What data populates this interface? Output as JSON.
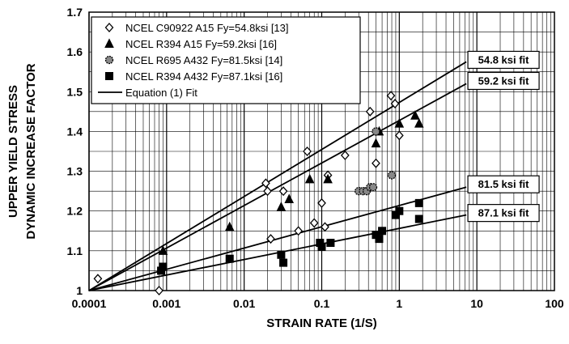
{
  "chart_data": {
    "type": "scatter",
    "title": "",
    "xlabel": "STRAIN RATE (1/S)",
    "ylabel_lines": [
      "UPPER YIELD STRESS",
      "DYNAMIC INCREASE FACTOR"
    ],
    "x_scale": "log",
    "xlim": [
      0.0001,
      100
    ],
    "ylim": [
      1.0,
      1.7
    ],
    "x_tick_labels": [
      "0.0001",
      "0.001",
      "0.01",
      "0.1",
      "1",
      "10",
      "100"
    ],
    "y_tick_labels": [
      "1",
      "1.1",
      "1.2",
      "1.3",
      "1.4",
      "1.5",
      "1.6",
      "1.7"
    ],
    "grid": true,
    "legend_position": "top-left",
    "series": [
      {
        "name": "NCEL C90922 A15 Fy=54.8ksi [13]",
        "marker": "diamond",
        "points": [
          [
            0.00013,
            1.03
          ],
          [
            0.0008,
            1.0
          ],
          [
            0.019,
            1.27
          ],
          [
            0.02,
            1.25
          ],
          [
            0.022,
            1.13
          ],
          [
            0.032,
            1.25
          ],
          [
            0.05,
            1.15
          ],
          [
            0.065,
            1.35
          ],
          [
            0.08,
            1.17
          ],
          [
            0.1,
            1.22
          ],
          [
            0.11,
            1.16
          ],
          [
            0.12,
            1.29
          ],
          [
            0.2,
            1.34
          ],
          [
            0.42,
            1.45
          ],
          [
            0.5,
            1.32
          ],
          [
            0.78,
            1.49
          ],
          [
            0.88,
            1.47
          ],
          [
            1.0,
            1.39
          ]
        ]
      },
      {
        "name": "NCEL R394 A15  Fy=59.2ksi [16]",
        "marker": "triangle",
        "points": [
          [
            0.0009,
            1.1
          ],
          [
            0.0065,
            1.16
          ],
          [
            0.03,
            1.21
          ],
          [
            0.038,
            1.23
          ],
          [
            0.07,
            1.28
          ],
          [
            0.12,
            1.28
          ],
          [
            0.5,
            1.37
          ],
          [
            0.55,
            1.4
          ],
          [
            1.0,
            1.42
          ],
          [
            1.6,
            1.44
          ],
          [
            1.8,
            1.42
          ]
        ]
      },
      {
        "name": "NCEL R695 A432 Fy=81.5ksi [14]",
        "marker": "hatched-circle",
        "points": [
          [
            0.3,
            1.25
          ],
          [
            0.34,
            1.25
          ],
          [
            0.38,
            1.25
          ],
          [
            0.42,
            1.26
          ],
          [
            0.46,
            1.26
          ],
          [
            0.8,
            1.29
          ],
          [
            0.5,
            1.4
          ]
        ]
      },
      {
        "name": "NCEL R394 A432 Fy=87.1ksi [16]",
        "marker": "square",
        "points": [
          [
            0.00085,
            1.05
          ],
          [
            0.0009,
            1.06
          ],
          [
            0.0065,
            1.08
          ],
          [
            0.03,
            1.09
          ],
          [
            0.032,
            1.07
          ],
          [
            0.095,
            1.12
          ],
          [
            0.1,
            1.11
          ],
          [
            0.13,
            1.12
          ],
          [
            0.5,
            1.14
          ],
          [
            0.55,
            1.13
          ],
          [
            0.6,
            1.15
          ],
          [
            0.9,
            1.19
          ],
          [
            1.0,
            1.2
          ],
          [
            1.8,
            1.18
          ],
          [
            1.8,
            1.22
          ]
        ]
      }
    ],
    "fit_legend_label": "Equation (1) Fit",
    "fit_lines": [
      {
        "label": "54.8 ksi fit",
        "x": [
          0.0001,
          7.3
        ],
        "y": [
          1.0,
          1.575
        ]
      },
      {
        "label": "59.2 ksi fit",
        "x": [
          0.0001,
          7.3
        ],
        "y": [
          1.0,
          1.52
        ]
      },
      {
        "label": "81.5 ksi fit",
        "x": [
          0.0001,
          7.3
        ],
        "y": [
          1.0,
          1.26
        ]
      },
      {
        "label": "87.1 ksi fit",
        "x": [
          0.0001,
          7.3
        ],
        "y": [
          1.0,
          1.19
        ]
      }
    ]
  }
}
